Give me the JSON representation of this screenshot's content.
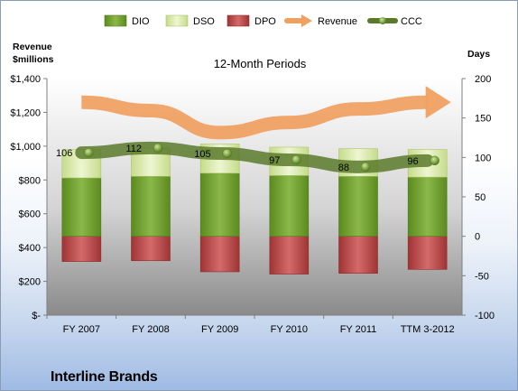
{
  "chart_data": {
    "type": "bar",
    "title": "12-Month Periods",
    "company": "Interline Brands",
    "categories": [
      "FY 2007",
      "FY 2008",
      "FY 2009",
      "FY 2010",
      "FY 2011",
      "TTM 3-2012"
    ],
    "left_axis": {
      "title_line1": "Revenue",
      "title_line2": "$millions",
      "ylim": [
        0,
        1400
      ],
      "ticks": [
        0,
        200,
        400,
        600,
        800,
        1000,
        1200,
        1400
      ],
      "tick_labels": [
        "$-",
        "$200",
        "$400",
        "$600",
        "$800",
        "$1,000",
        "$1,200",
        "$1,400"
      ]
    },
    "right_axis": {
      "title": "Days",
      "ylim": [
        -100,
        200
      ],
      "ticks": [
        -100,
        -50,
        0,
        50,
        100,
        150,
        200
      ],
      "tick_labels": [
        "-100",
        "-50",
        "0",
        "50",
        "100",
        "150",
        "200"
      ]
    },
    "legend": [
      "DIO",
      "DSO",
      "DPO",
      "Revenue",
      "CCC"
    ],
    "legend_position": "top",
    "series": [
      {
        "name": "DIO",
        "axis": "right",
        "stacked": true,
        "color": "#6f9a2c",
        "values": [
          74,
          76,
          80,
          77,
          76,
          75
        ]
      },
      {
        "name": "DSO",
        "axis": "right",
        "stacked": true,
        "color": "#d6e8a8",
        "values": [
          36,
          36,
          37,
          36,
          35,
          35
        ]
      },
      {
        "name": "DPO",
        "axis": "right",
        "stacked": true,
        "color": "#b84a4a",
        "values": [
          -32,
          -31,
          -45,
          -48,
          -47,
          -42
        ]
      },
      {
        "name": "Revenue",
        "axis": "left",
        "type": "line",
        "color": "#f0a060",
        "values": [
          1260,
          1210,
          1080,
          1140,
          1220,
          1260
        ]
      },
      {
        "name": "CCC",
        "axis": "right",
        "type": "line",
        "color": "#5a7a2a",
        "values": [
          106,
          112,
          105,
          97,
          88,
          96
        ]
      }
    ],
    "ccc_labels": [
      "106",
      "112",
      "105",
      "97",
      "88",
      "96"
    ],
    "colors": {
      "plot_top": "#ffffff",
      "plot_bottom": "#8c8c8c",
      "frame_bottom": "#9fbbe4"
    }
  }
}
